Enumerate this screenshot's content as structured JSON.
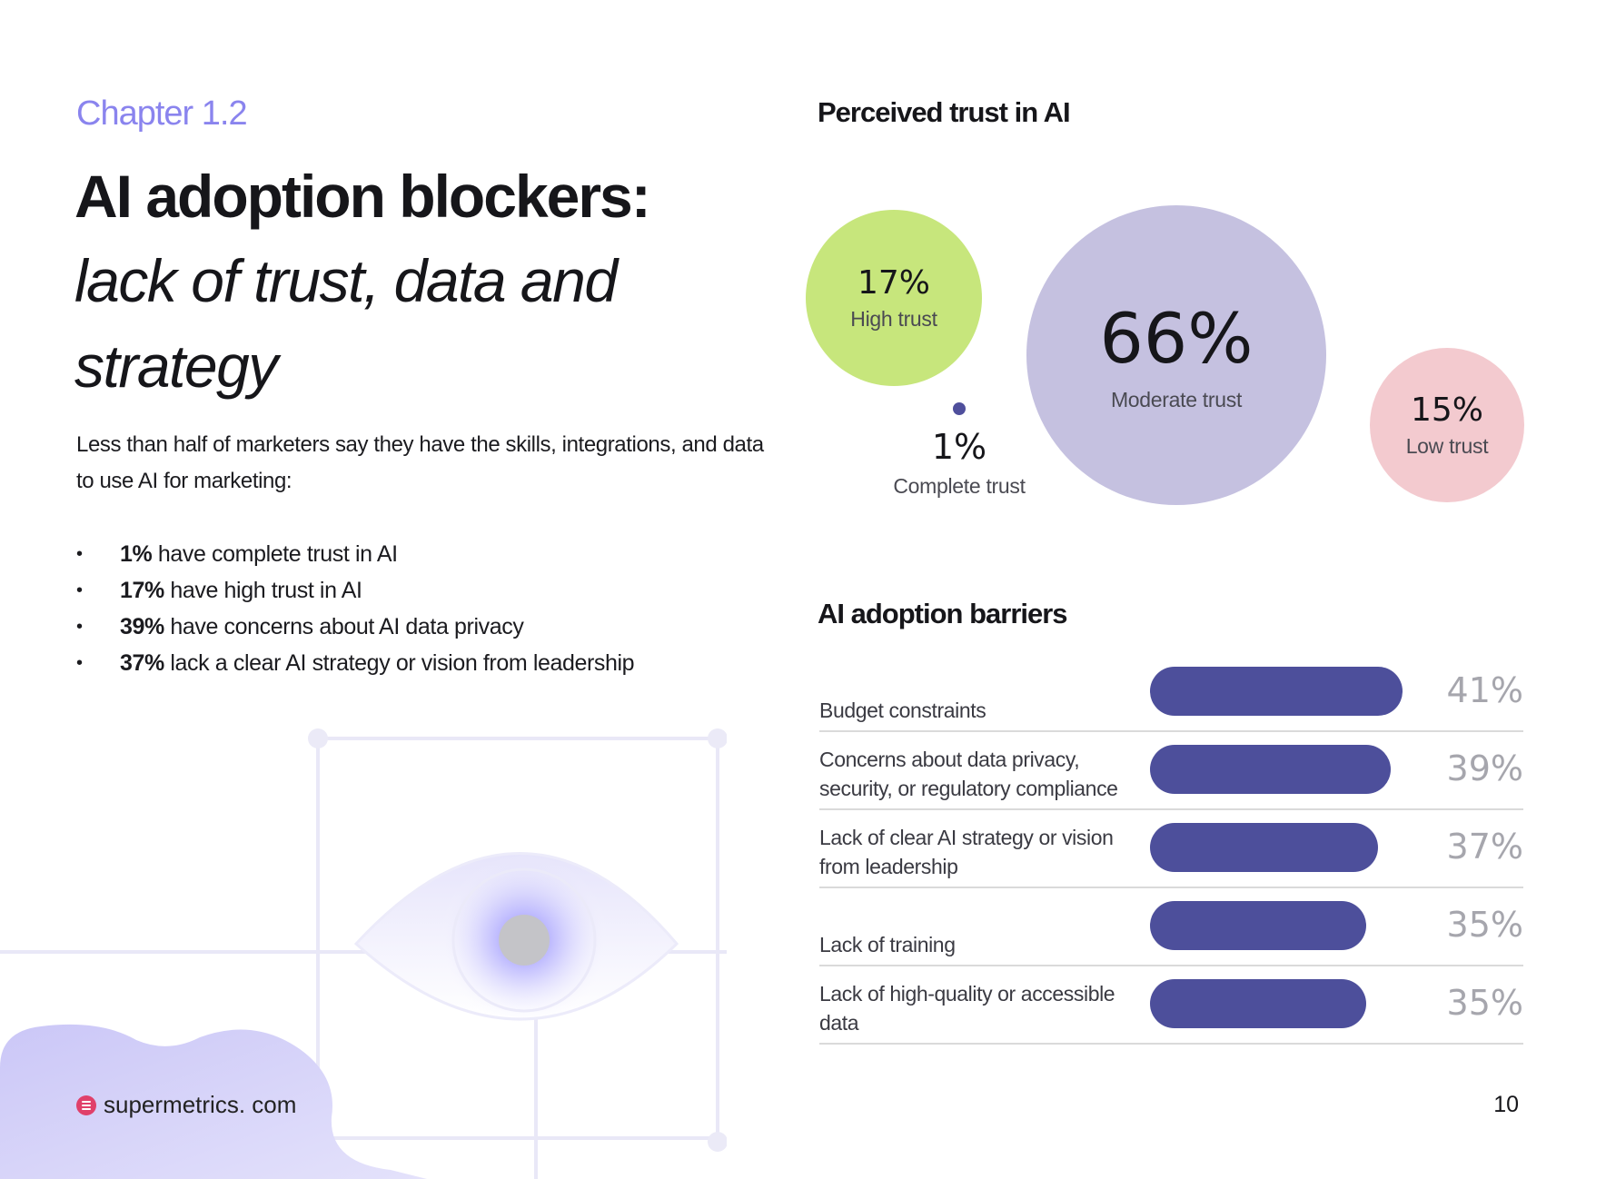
{
  "left": {
    "chapter": "Chapter 1.2",
    "title_bold": "AI adoption blockers:",
    "title_italic": "lack of trust, data and strategy",
    "intro": "Less than half of marketers say they have the skills, integrations, and data to use AI for marketing:",
    "bullets": [
      {
        "bold": "1%",
        "text": " have complete trust in AI"
      },
      {
        "bold": "17%",
        "text": " have high trust in AI"
      },
      {
        "bold": "39%",
        "text": " have concerns about AI data privacy"
      },
      {
        "bold": "37%",
        "text": " lack a clear AI strategy or vision from leadership"
      }
    ],
    "bullet_symbol": "•"
  },
  "footer": {
    "brand": "supermetrics. com",
    "page_number": "10"
  },
  "trust": {
    "heading": "Perceived trust in AI",
    "complete": {
      "pct": "1%",
      "label": "Complete trust",
      "value": 1
    },
    "high": {
      "pct": "17%",
      "label": "High trust",
      "value": 17
    },
    "moderate": {
      "pct": "66%",
      "label": "Moderate trust",
      "value": 66
    },
    "low": {
      "pct": "15%",
      "label": "Low trust",
      "value": 15
    }
  },
  "barriers_heading": "AI adoption barriers",
  "chart_data": {
    "type": "bar",
    "title": "AI adoption barriers",
    "categories": [
      "Budget constraints",
      "Concerns about data privacy, security, or regulatory compliance",
      "Lack of clear AI strategy or vision from leadership",
      "Lack of training",
      "Lack of high-quality or accessible data"
    ],
    "values": [
      41,
      39,
      37,
      35,
      35
    ],
    "value_labels": [
      "41%",
      "39%",
      "37%",
      "35%",
      "35%"
    ],
    "xlim": [
      0,
      48
    ],
    "bar_color": "#4d4f9b"
  },
  "colors": {
    "accent": "#8a84ee",
    "high_trust": "#c7e67c",
    "moderate_trust": "#c5c1e0",
    "low_trust": "#f3cacf",
    "complete_trust": "#4f4f9c",
    "brand": "#e0406a"
  }
}
